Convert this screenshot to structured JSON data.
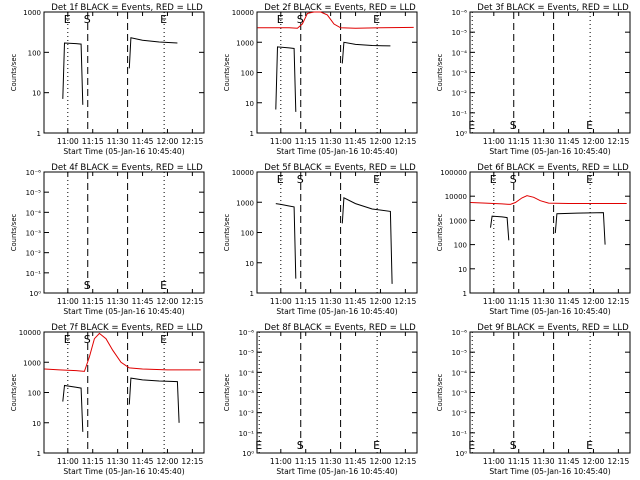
{
  "chart_data": [
    {
      "type": "line",
      "title": "Det 1f BLACK = Events, RED = LLD",
      "xlabel": "Start Time (05-Jan-16 10:45:40)",
      "ylabel": "Counts/sec",
      "scale": "log",
      "ylim": [
        1,
        1000
      ],
      "yticks": [
        "1",
        "10",
        "100",
        "1000"
      ],
      "xticks": [
        "11:00",
        "11:15",
        "11:30",
        "11:45",
        "12:00",
        "12:15"
      ],
      "markers": [
        {
          "label": "E",
          "time": "11:00",
          "style": "dotted",
          "label_pos": "top"
        },
        {
          "label": "S",
          "time": "11:12",
          "style": "dashed",
          "label_pos": "top"
        },
        {
          "label": "",
          "time": "11:36",
          "style": "dashed",
          "label_pos": "top"
        },
        {
          "label": "E",
          "time": "11:58",
          "style": "dotted",
          "label_pos": "top"
        }
      ],
      "series": [
        {
          "color": "#000000",
          "segments": [
            [
              [
                "10:57",
                7
              ],
              [
                "10:58",
                170
              ],
              [
                "11:05",
                165
              ],
              [
                "11:08",
                160
              ],
              [
                "11:09",
                5
              ]
            ],
            [
              [
                "11:37",
                40
              ],
              [
                "11:38",
                230
              ],
              [
                "11:45",
                200
              ],
              [
                "11:55",
                180
              ],
              [
                "12:06",
                170
              ]
            ]
          ]
        }
      ]
    },
    {
      "type": "line",
      "title": "Det 2f BLACK = Events, RED = LLD",
      "xlabel": "Start Time (05-Jan-16 10:45:40)",
      "ylabel": "Counts/sec",
      "scale": "log",
      "ylim": [
        1,
        10000
      ],
      "yticks": [
        "1",
        "10",
        "100",
        "1000",
        "10000"
      ],
      "xticks": [
        "11:00",
        "11:15",
        "11:30",
        "11:45",
        "12:00",
        "12:15"
      ],
      "markers": [
        {
          "label": "E",
          "time": "11:00",
          "style": "dotted",
          "label_pos": "top"
        },
        {
          "label": "S",
          "time": "11:12",
          "style": "dashed",
          "label_pos": "top"
        },
        {
          "label": "",
          "time": "11:36",
          "style": "dashed",
          "label_pos": "top"
        },
        {
          "label": "E",
          "time": "11:58",
          "style": "dotted",
          "label_pos": "top"
        }
      ],
      "series": [
        {
          "color": "#000000",
          "segments": [
            [
              [
                "10:57",
                6
              ],
              [
                "10:58",
                700
              ],
              [
                "11:05",
                650
              ],
              [
                "11:08",
                620
              ],
              [
                "11:09",
                5
              ]
            ],
            [
              [
                "11:37",
                200
              ],
              [
                "11:38",
                1000
              ],
              [
                "11:45",
                850
              ],
              [
                "11:55",
                780
              ],
              [
                "12:06",
                760
              ]
            ]
          ]
        },
        {
          "color": "#e00000",
          "segments": [
            [
              [
                "10:46",
                3000
              ],
              [
                "10:55",
                3000
              ],
              [
                "11:05",
                3000
              ],
              [
                "11:10",
                2900
              ],
              [
                "11:13",
                4000
              ],
              [
                "11:16",
                9000
              ],
              [
                "11:20",
                12000
              ],
              [
                "11:24",
                11000
              ],
              [
                "11:28",
                8000
              ],
              [
                "11:32",
                4000
              ],
              [
                "11:36",
                3000
              ],
              [
                "11:45",
                2900
              ],
              [
                "12:00",
                3000
              ],
              [
                "12:20",
                3100
              ]
            ]
          ]
        }
      ]
    },
    {
      "type": "line",
      "title": "Det 3f BLACK = Events, RED = LLD",
      "xlabel": "Start Time (05-Jan-16 10:45:40)",
      "ylabel": "Counts/sec",
      "scale": "log",
      "ylim": [
        1,
        1e-06
      ],
      "yticks": [
        "10⁰",
        "10⁻¹",
        "10⁻²",
        "10⁻³",
        "10⁻⁴",
        "10⁻⁵",
        "10⁻⁶"
      ],
      "xticks": [
        "11:00",
        "11:15",
        "11:30",
        "11:45",
        "12:00",
        "12:15"
      ],
      "markers": [
        {
          "label": "E",
          "time": "10:47",
          "style": "dotted",
          "label_pos": "bottom"
        },
        {
          "label": "S",
          "time": "11:12",
          "style": "dashed",
          "label_pos": "bottom"
        },
        {
          "label": "",
          "time": "11:36",
          "style": "dashed",
          "label_pos": "bottom"
        },
        {
          "label": "E",
          "time": "11:58",
          "style": "dotted",
          "label_pos": "bottom"
        }
      ],
      "series": []
    },
    {
      "type": "line",
      "title": "Det 4f BLACK = Events, RED = LLD",
      "xlabel": "Start Time (05-Jan-16 10:45:40)",
      "ylabel": "Counts/sec",
      "scale": "log",
      "ylim": [
        1,
        1e-06
      ],
      "yticks": [
        "10⁰",
        "10⁻¹",
        "10⁻²",
        "10⁻³",
        "10⁻⁴",
        "10⁻⁵",
        "10⁻⁶"
      ],
      "xticks": [
        "11:00",
        "11:15",
        "11:30",
        "11:45",
        "12:00",
        "12:15"
      ],
      "markers": [
        {
          "label": "",
          "time": "11:00",
          "style": "dotted",
          "label_pos": "bottom"
        },
        {
          "label": "S",
          "time": "11:12",
          "style": "dashed",
          "label_pos": "bottom"
        },
        {
          "label": "",
          "time": "11:36",
          "style": "dashed",
          "label_pos": "bottom"
        },
        {
          "label": "E",
          "time": "11:58",
          "style": "dotted",
          "label_pos": "bottom"
        }
      ],
      "series": []
    },
    {
      "type": "line",
      "title": "Det 5f BLACK = Events, RED = LLD",
      "xlabel": "Start Time (05-Jan-16 10:45:40)",
      "ylabel": "Counts/sec",
      "scale": "log",
      "ylim": [
        1,
        10000
      ],
      "yticks": [
        "1",
        "10",
        "100",
        "1000",
        "10000"
      ],
      "xticks": [
        "11:00",
        "11:15",
        "11:30",
        "11:45",
        "12:00",
        "12:15"
      ],
      "markers": [
        {
          "label": "E",
          "time": "11:00",
          "style": "dotted",
          "label_pos": "top"
        },
        {
          "label": "S",
          "time": "11:12",
          "style": "dashed",
          "label_pos": "top"
        },
        {
          "label": "",
          "time": "11:36",
          "style": "dashed",
          "label_pos": "top"
        },
        {
          "label": "E",
          "time": "11:58",
          "style": "dotted",
          "label_pos": "top"
        }
      ],
      "series": [
        {
          "color": "#000000",
          "segments": [
            [
              [
                "10:57",
                900
              ],
              [
                "11:00",
                850
              ],
              [
                "11:05",
                750
              ],
              [
                "11:08",
                700
              ],
              [
                "11:09",
                3
              ]
            ],
            [
              [
                "11:37",
                200
              ],
              [
                "11:38",
                1400
              ],
              [
                "11:45",
                900
              ],
              [
                "11:55",
                600
              ],
              [
                "12:06",
                500
              ],
              [
                "12:07",
                2
              ]
            ]
          ]
        }
      ]
    },
    {
      "type": "line",
      "title": "Det 6f BLACK = Events, RED = LLD",
      "xlabel": "Start Time (05-Jan-16 10:45:40)",
      "ylabel": "Counts/sec",
      "scale": "log",
      "ylim": [
        1,
        100000
      ],
      "yticks": [
        "1",
        "10",
        "100",
        "1000",
        "10000",
        "100000"
      ],
      "xticks": [
        "11:00",
        "11:15",
        "11:30",
        "11:45",
        "12:00",
        "12:15"
      ],
      "markers": [
        {
          "label": "E",
          "time": "11:00",
          "style": "dotted",
          "label_pos": "top"
        },
        {
          "label": "S",
          "time": "11:12",
          "style": "dashed",
          "label_pos": "top"
        },
        {
          "label": "",
          "time": "11:36",
          "style": "dashed",
          "label_pos": "top"
        },
        {
          "label": "E",
          "time": "11:58",
          "style": "dotted",
          "label_pos": "top"
        }
      ],
      "series": [
        {
          "color": "#000000",
          "segments": [
            [
              [
                "10:58",
                500
              ],
              [
                "10:59",
                1500
              ],
              [
                "11:05",
                1400
              ],
              [
                "11:08",
                1300
              ],
              [
                "11:09",
                150
              ]
            ],
            [
              [
                "11:37",
                300
              ],
              [
                "11:38",
                1900
              ],
              [
                "11:50",
                2000
              ],
              [
                "12:06",
                2100
              ],
              [
                "12:07",
                100
              ]
            ]
          ]
        },
        {
          "color": "#e00000",
          "segments": [
            [
              [
                "10:46",
                5500
              ],
              [
                "10:55",
                5200
              ],
              [
                "11:05",
                4800
              ],
              [
                "11:10",
                4600
              ],
              [
                "11:13",
                5500
              ],
              [
                "11:17",
                8500
              ],
              [
                "11:20",
                10500
              ],
              [
                "11:24",
                9000
              ],
              [
                "11:28",
                6500
              ],
              [
                "11:33",
                5200
              ],
              [
                "11:45",
                5000
              ],
              [
                "12:00",
                5000
              ],
              [
                "12:20",
                5000
              ]
            ]
          ]
        }
      ]
    },
    {
      "type": "line",
      "title": "Det 7f BLACK = Events, RED = LLD",
      "xlabel": "Start Time (05-Jan-16 10:45:40)",
      "ylabel": "Counts/sec",
      "scale": "log",
      "ylim": [
        1,
        10000
      ],
      "yticks": [
        "1",
        "10",
        "100",
        "1000",
        "10000"
      ],
      "xticks": [
        "11:00",
        "11:15",
        "11:30",
        "11:45",
        "12:00",
        "12:15"
      ],
      "markers": [
        {
          "label": "E",
          "time": "11:00",
          "style": "dotted",
          "label_pos": "top"
        },
        {
          "label": "S",
          "time": "11:12",
          "style": "dashed",
          "label_pos": "top"
        },
        {
          "label": "",
          "time": "11:36",
          "style": "dashed",
          "label_pos": "top"
        },
        {
          "label": "E",
          "time": "11:58",
          "style": "dotted",
          "label_pos": "top"
        }
      ],
      "series": [
        {
          "color": "#000000",
          "segments": [
            [
              [
                "10:57",
                50
              ],
              [
                "10:58",
                170
              ],
              [
                "11:05",
                150
              ],
              [
                "11:08",
                140
              ],
              [
                "11:09",
                5
              ]
            ],
            [
              [
                "11:37",
                40
              ],
              [
                "11:38",
                300
              ],
              [
                "11:45",
                260
              ],
              [
                "11:55",
                240
              ],
              [
                "12:06",
                230
              ],
              [
                "12:07",
                10
              ]
            ]
          ]
        },
        {
          "color": "#e00000",
          "segments": [
            [
              [
                "10:46",
                600
              ],
              [
                "10:55",
                560
              ],
              [
                "11:05",
                530
              ],
              [
                "11:10",
                500
              ],
              [
                "11:13",
                1500
              ],
              [
                "11:16",
                6000
              ],
              [
                "11:19",
                9000
              ],
              [
                "11:23",
                6000
              ],
              [
                "11:27",
                2500
              ],
              [
                "11:32",
                1000
              ],
              [
                "11:37",
                650
              ],
              [
                "11:45",
                600
              ],
              [
                "12:00",
                560
              ],
              [
                "12:20",
                560
              ]
            ]
          ]
        }
      ]
    },
    {
      "type": "line",
      "title": "Det 8f BLACK = Events, RED = LLD",
      "xlabel": "Start Time (05-Jan-16 10:45:40)",
      "ylabel": "Counts/sec",
      "scale": "log",
      "ylim": [
        1,
        1e-06
      ],
      "yticks": [
        "10⁰",
        "10⁻¹",
        "10⁻²",
        "10⁻³",
        "10⁻⁴",
        "10⁻⁵",
        "10⁻⁶"
      ],
      "xticks": [
        "11:00",
        "11:15",
        "11:30",
        "11:45",
        "12:00",
        "12:15"
      ],
      "markers": [
        {
          "label": "E",
          "time": "10:47",
          "style": "dotted",
          "label_pos": "bottom"
        },
        {
          "label": "S",
          "time": "11:12",
          "style": "dashed",
          "label_pos": "bottom"
        },
        {
          "label": "",
          "time": "11:36",
          "style": "dashed",
          "label_pos": "bottom"
        },
        {
          "label": "E",
          "time": "11:58",
          "style": "dotted",
          "label_pos": "bottom"
        }
      ],
      "series": []
    },
    {
      "type": "line",
      "title": "Det 9f BLACK = Events, RED = LLD",
      "xlabel": "Start Time (05-Jan-16 10:45:40)",
      "ylabel": "Counts/sec",
      "scale": "log",
      "ylim": [
        1,
        1e-06
      ],
      "yticks": [
        "10⁰",
        "10⁻¹",
        "10⁻²",
        "10⁻³",
        "10⁻⁴",
        "10⁻⁵",
        "10⁻⁶"
      ],
      "xticks": [
        "11:00",
        "11:15",
        "11:30",
        "11:45",
        "12:00",
        "12:15"
      ],
      "markers": [
        {
          "label": "E",
          "time": "10:47",
          "style": "dotted",
          "label_pos": "bottom"
        },
        {
          "label": "S",
          "time": "11:12",
          "style": "dashed",
          "label_pos": "bottom"
        },
        {
          "label": "",
          "time": "11:36",
          "style": "dashed",
          "label_pos": "bottom"
        },
        {
          "label": "E",
          "time": "11:58",
          "style": "dotted",
          "label_pos": "bottom"
        }
      ],
      "series": []
    }
  ]
}
